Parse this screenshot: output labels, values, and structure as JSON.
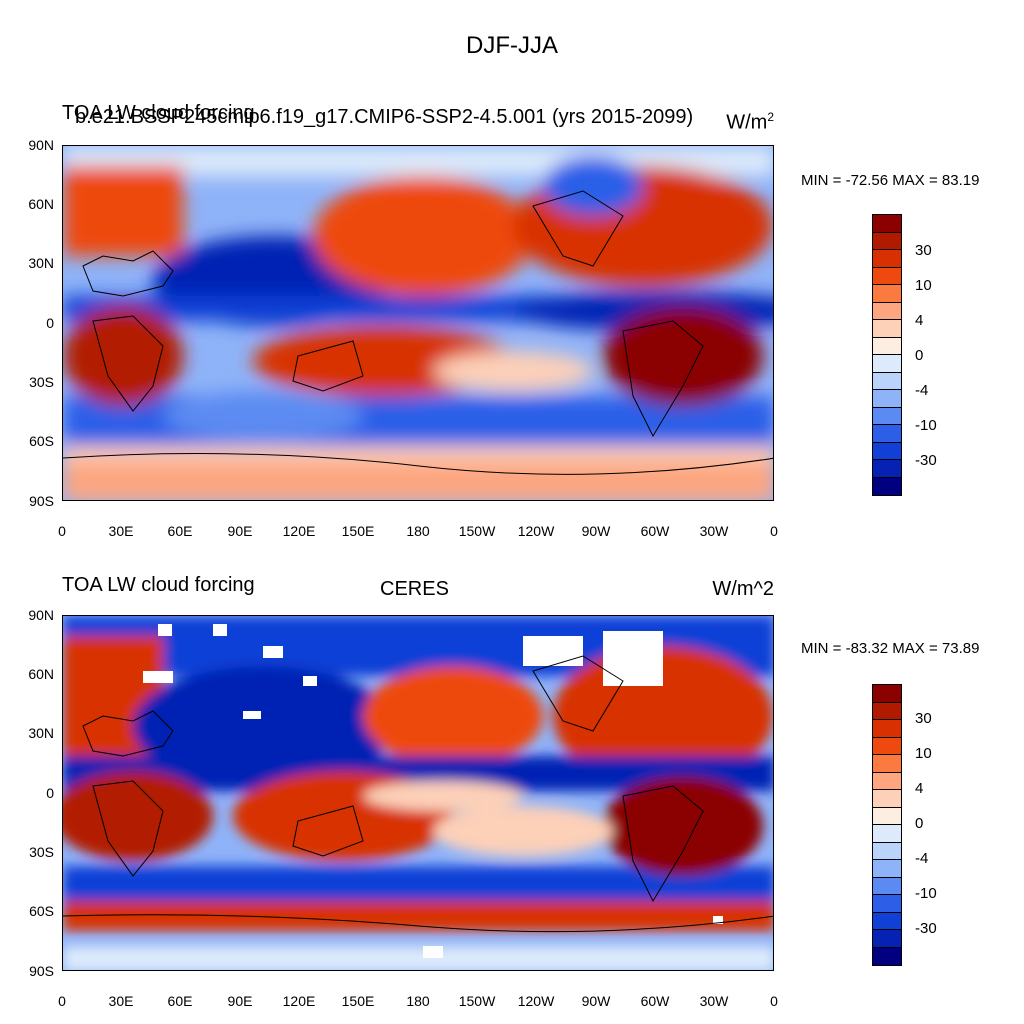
{
  "main_title": "DJF-JJA",
  "colorbar": {
    "colors": [
      "#8b0000",
      "#b21a00",
      "#d83000",
      "#ee4a10",
      "#fb7a40",
      "#fda680",
      "#fdd0b8",
      "#fdeee2",
      "#dceafb",
      "#b9d3fb",
      "#8fb3f8",
      "#5b8bf2",
      "#2c5ee8",
      "#1040d6",
      "#0522b4",
      "#000080"
    ],
    "labels": [
      "30",
      "10",
      "4",
      "0",
      "-4",
      "-10",
      "-30"
    ]
  },
  "axes": {
    "lat_labels": [
      "90N",
      "60N",
      "30N",
      "0",
      "30S",
      "60S",
      "90S"
    ],
    "lon_labels": [
      "0",
      "30E",
      "60E",
      "90E",
      "120E",
      "150E",
      "180",
      "150W",
      "120W",
      "90W",
      "60W",
      "30W",
      "0"
    ]
  },
  "panels": [
    {
      "title_left": "TOA LW cloud forcing",
      "title_overlay": "b.e21.BSSP245cmip6.f19_g17.CMIP6-SSP2-4.5.001 (yrs 2015-2099)",
      "units": "W/m^2",
      "units_super": "2",
      "units_base": "W/m",
      "min_max": "MIN = -72.56 MAX =  83.19"
    },
    {
      "title_left": "TOA LW cloud forcing",
      "title_center": "CERES",
      "units": "W/m^2",
      "min_max": "MIN = -83.32 MAX =  73.89"
    }
  ]
}
